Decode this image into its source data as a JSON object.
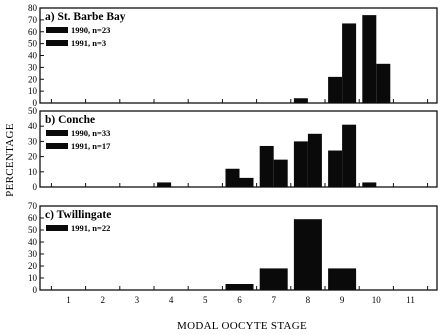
{
  "chart_data": {
    "type": "bar",
    "xlabel": "MODAL OOCYTE STAGE",
    "ylabel": "PERCENTAGE",
    "x_ticks": [
      "1",
      "2",
      "3",
      "4",
      "5",
      "6",
      "7",
      "8",
      "9",
      "10",
      "11"
    ],
    "panels": [
      {
        "title": "a) St. Barbe Bay",
        "ylim": [
          0,
          80
        ],
        "y_ticks": [
          "0",
          "10",
          "20",
          "30",
          "40",
          "50",
          "60",
          "70",
          "80"
        ],
        "series": [
          {
            "name": "1990, n=23",
            "stages": [
              8,
              9,
              10
            ],
            "values": [
              4,
              22,
              74
            ]
          },
          {
            "name": "1991, n=3",
            "stages": [
              9,
              10
            ],
            "values": [
              67,
              33
            ]
          }
        ]
      },
      {
        "title": "b) Conche",
        "ylim": [
          0,
          50
        ],
        "y_ticks": [
          "0",
          "10",
          "20",
          "30",
          "40",
          "50"
        ],
        "series": [
          {
            "name": "1990, n=33",
            "stages": [
              4,
              6,
              7,
              8,
              9,
              10
            ],
            "values": [
              3,
              12,
              27,
              30,
              24,
              3
            ]
          },
          {
            "name": "1991, n=17",
            "stages": [
              6,
              7,
              8,
              9
            ],
            "values": [
              6,
              18,
              35,
              41
            ]
          }
        ]
      },
      {
        "title": "c) Twillingate",
        "ylim": [
          0,
          70
        ],
        "y_ticks": [
          "0",
          "10",
          "20",
          "30",
          "40",
          "50",
          "60",
          "70"
        ],
        "series": [
          {
            "name": "1991, n=22",
            "stages": [
              6,
              7,
              8,
              9
            ],
            "values": [
              5,
              18,
              59,
              18
            ]
          }
        ]
      }
    ]
  }
}
